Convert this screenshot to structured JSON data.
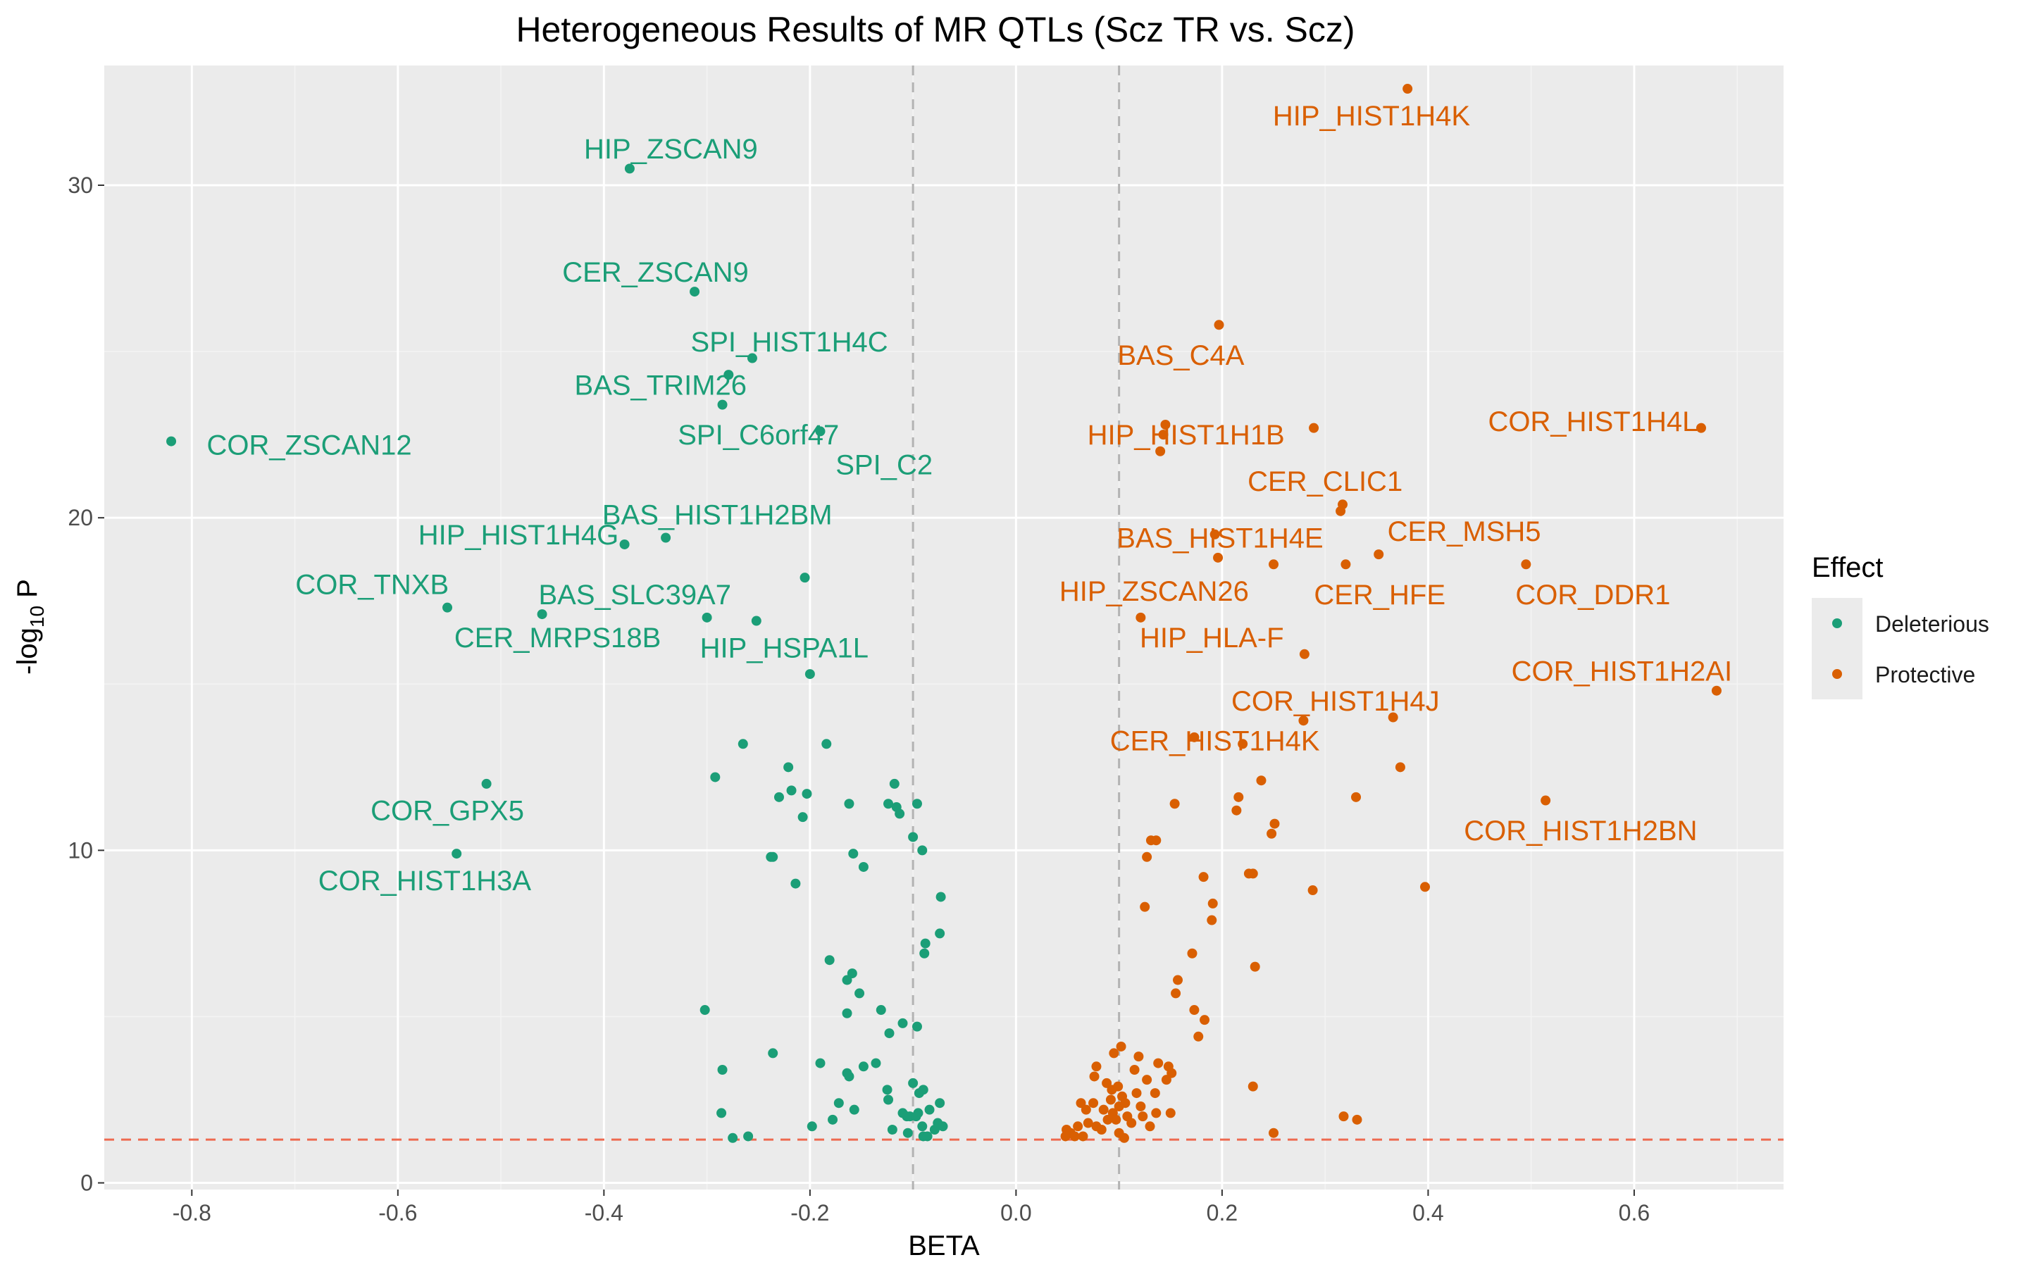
{
  "colors": {
    "deleterious": "#1b9e77",
    "protective": "#d95f02",
    "panel_bg": "#ebebeb",
    "grid_major": "#ffffff",
    "grid_minor": "#f4f4f4",
    "vline": "#b3b3b3",
    "hline": "#ee6a50",
    "text": "#1a1a1a",
    "tick_text": "#4d4d4d"
  },
  "chart_data": {
    "type": "scatter",
    "title": "Heterogeneous Results of MR QTLs (Scz TR vs. Scz)",
    "xlabel": "BETA",
    "ylabel_prefix": "-log",
    "ylabel_subscript": "10",
    "ylabel_suffix": " P",
    "xlim": [
      -0.885,
      0.745
    ],
    "ylim": [
      -0.2,
      33.6
    ],
    "x_ticks": [
      -0.8,
      -0.6,
      -0.4,
      -0.2,
      0.0,
      0.2,
      0.4,
      0.6
    ],
    "x_tick_labels": [
      "-0.8",
      "-0.6",
      "-0.4",
      "-0.2",
      "0.0",
      "0.2",
      "0.4",
      "0.6"
    ],
    "y_ticks": [
      0,
      10,
      20,
      30
    ],
    "y_tick_labels": [
      "0",
      "10",
      "20",
      "30"
    ],
    "grid": true,
    "vlines": [
      -0.1,
      0.1
    ],
    "hline": 1.3,
    "legend": {
      "title": "Effect",
      "position": "right",
      "entries": [
        "Deleterious",
        "Protective"
      ]
    },
    "series": [
      {
        "name": "Deleterious",
        "points": [
          {
            "x": -0.82,
            "y": 22.3
          },
          {
            "x": -0.375,
            "y": 30.5
          },
          {
            "x": -0.312,
            "y": 26.8
          },
          {
            "x": -0.256,
            "y": 24.8
          },
          {
            "x": -0.279,
            "y": 24.3
          },
          {
            "x": -0.285,
            "y": 23.4
          },
          {
            "x": -0.19,
            "y": 22.6
          },
          {
            "x": -0.38,
            "y": 19.2
          },
          {
            "x": -0.34,
            "y": 19.4
          },
          {
            "x": -0.552,
            "y": 17.3
          },
          {
            "x": -0.46,
            "y": 17.1
          },
          {
            "x": -0.3,
            "y": 17.0
          },
          {
            "x": -0.252,
            "y": 16.9
          },
          {
            "x": -0.205,
            "y": 18.2
          },
          {
            "x": -0.2,
            "y": 15.3
          },
          {
            "x": -0.514,
            "y": 12.0
          },
          {
            "x": -0.543,
            "y": 9.9
          },
          {
            "x": -0.265,
            "y": 13.2
          },
          {
            "x": -0.184,
            "y": 13.2
          },
          {
            "x": -0.221,
            "y": 12.5
          },
          {
            "x": -0.292,
            "y": 12.2
          },
          {
            "x": -0.218,
            "y": 11.8
          },
          {
            "x": -0.23,
            "y": 11.6
          },
          {
            "x": -0.203,
            "y": 11.7
          },
          {
            "x": -0.207,
            "y": 11.0
          },
          {
            "x": -0.162,
            "y": 11.4
          },
          {
            "x": -0.124,
            "y": 11.4
          },
          {
            "x": -0.118,
            "y": 12.0
          },
          {
            "x": -0.116,
            "y": 11.3
          },
          {
            "x": -0.113,
            "y": 11.1
          },
          {
            "x": -0.096,
            "y": 11.4
          },
          {
            "x": -0.1,
            "y": 10.4
          },
          {
            "x": -0.091,
            "y": 10.0
          },
          {
            "x": -0.238,
            "y": 9.8
          },
          {
            "x": -0.236,
            "y": 9.8
          },
          {
            "x": -0.158,
            "y": 9.9
          },
          {
            "x": -0.148,
            "y": 9.5
          },
          {
            "x": -0.214,
            "y": 9.0
          },
          {
            "x": -0.073,
            "y": 8.6
          },
          {
            "x": -0.088,
            "y": 7.2
          },
          {
            "x": -0.089,
            "y": 6.9
          },
          {
            "x": -0.074,
            "y": 7.5
          },
          {
            "x": -0.181,
            "y": 6.7
          },
          {
            "x": -0.159,
            "y": 6.3
          },
          {
            "x": -0.164,
            "y": 6.1
          },
          {
            "x": -0.152,
            "y": 5.7
          },
          {
            "x": -0.131,
            "y": 5.2
          },
          {
            "x": -0.164,
            "y": 5.1
          },
          {
            "x": -0.302,
            "y": 5.2
          },
          {
            "x": -0.11,
            "y": 4.8
          },
          {
            "x": -0.096,
            "y": 4.7
          },
          {
            "x": -0.123,
            "y": 4.5
          },
          {
            "x": -0.236,
            "y": 3.9
          },
          {
            "x": -0.19,
            "y": 3.6
          },
          {
            "x": -0.148,
            "y": 3.5
          },
          {
            "x": -0.136,
            "y": 3.6
          },
          {
            "x": -0.164,
            "y": 3.3
          },
          {
            "x": -0.162,
            "y": 3.2
          },
          {
            "x": -0.285,
            "y": 3.4
          },
          {
            "x": -0.1,
            "y": 3.0
          },
          {
            "x": -0.125,
            "y": 2.8
          },
          {
            "x": -0.094,
            "y": 2.7
          },
          {
            "x": -0.09,
            "y": 2.8
          },
          {
            "x": -0.124,
            "y": 2.5
          },
          {
            "x": -0.074,
            "y": 2.4
          },
          {
            "x": -0.084,
            "y": 2.2
          },
          {
            "x": -0.157,
            "y": 2.2
          },
          {
            "x": -0.172,
            "y": 2.4
          },
          {
            "x": -0.11,
            "y": 2.1
          },
          {
            "x": -0.106,
            "y": 2.0
          },
          {
            "x": -0.103,
            "y": 2.0
          },
          {
            "x": -0.095,
            "y": 2.1
          },
          {
            "x": -0.091,
            "y": 1.7
          },
          {
            "x": -0.097,
            "y": 2.0
          },
          {
            "x": -0.076,
            "y": 1.8
          },
          {
            "x": -0.071,
            "y": 1.7
          },
          {
            "x": -0.178,
            "y": 1.9
          },
          {
            "x": -0.198,
            "y": 1.7
          },
          {
            "x": -0.286,
            "y": 2.1
          },
          {
            "x": -0.12,
            "y": 1.6
          },
          {
            "x": -0.105,
            "y": 1.5
          },
          {
            "x": -0.09,
            "y": 1.4
          },
          {
            "x": -0.086,
            "y": 1.4
          },
          {
            "x": -0.079,
            "y": 1.6
          },
          {
            "x": -0.26,
            "y": 1.4
          },
          {
            "x": -0.275,
            "y": 1.35
          }
        ]
      },
      {
        "name": "Protective",
        "points": [
          {
            "x": 0.38,
            "y": 32.9
          },
          {
            "x": 0.197,
            "y": 25.8
          },
          {
            "x": 0.665,
            "y": 22.7
          },
          {
            "x": 0.289,
            "y": 22.7
          },
          {
            "x": 0.145,
            "y": 22.8
          },
          {
            "x": 0.143,
            "y": 22.5
          },
          {
            "x": 0.14,
            "y": 22.0
          },
          {
            "x": 0.317,
            "y": 20.4
          },
          {
            "x": 0.315,
            "y": 20.2
          },
          {
            "x": 0.193,
            "y": 19.5
          },
          {
            "x": 0.196,
            "y": 18.8
          },
          {
            "x": 0.25,
            "y": 18.6
          },
          {
            "x": 0.32,
            "y": 18.6
          },
          {
            "x": 0.352,
            "y": 18.9
          },
          {
            "x": 0.495,
            "y": 18.6
          },
          {
            "x": 0.121,
            "y": 17.0
          },
          {
            "x": 0.28,
            "y": 15.9
          },
          {
            "x": 0.68,
            "y": 14.8
          },
          {
            "x": 0.366,
            "y": 14.0
          },
          {
            "x": 0.279,
            "y": 13.9
          },
          {
            "x": 0.173,
            "y": 13.4
          },
          {
            "x": 0.22,
            "y": 13.2
          },
          {
            "x": 0.238,
            "y": 12.1
          },
          {
            "x": 0.373,
            "y": 12.5
          },
          {
            "x": 0.216,
            "y": 11.6
          },
          {
            "x": 0.33,
            "y": 11.6
          },
          {
            "x": 0.514,
            "y": 11.5
          },
          {
            "x": 0.154,
            "y": 11.4
          },
          {
            "x": 0.214,
            "y": 11.2
          },
          {
            "x": 0.251,
            "y": 10.8
          },
          {
            "x": 0.248,
            "y": 10.5
          },
          {
            "x": 0.136,
            "y": 10.3
          },
          {
            "x": 0.131,
            "y": 10.3
          },
          {
            "x": 0.127,
            "y": 9.8
          },
          {
            "x": 0.226,
            "y": 9.3
          },
          {
            "x": 0.23,
            "y": 9.3
          },
          {
            "x": 0.182,
            "y": 9.2
          },
          {
            "x": 0.397,
            "y": 8.9
          },
          {
            "x": 0.288,
            "y": 8.8
          },
          {
            "x": 0.191,
            "y": 8.4
          },
          {
            "x": 0.125,
            "y": 8.3
          },
          {
            "x": 0.19,
            "y": 7.9
          },
          {
            "x": 0.171,
            "y": 6.9
          },
          {
            "x": 0.232,
            "y": 6.5
          },
          {
            "x": 0.157,
            "y": 6.1
          },
          {
            "x": 0.155,
            "y": 5.7
          },
          {
            "x": 0.173,
            "y": 5.2
          },
          {
            "x": 0.183,
            "y": 4.9
          },
          {
            "x": 0.177,
            "y": 4.4
          },
          {
            "x": 0.102,
            "y": 4.1
          },
          {
            "x": 0.095,
            "y": 3.9
          },
          {
            "x": 0.119,
            "y": 3.8
          },
          {
            "x": 0.078,
            "y": 3.5
          },
          {
            "x": 0.115,
            "y": 3.4
          },
          {
            "x": 0.138,
            "y": 3.6
          },
          {
            "x": 0.148,
            "y": 3.5
          },
          {
            "x": 0.151,
            "y": 3.3
          },
          {
            "x": 0.146,
            "y": 3.1
          },
          {
            "x": 0.127,
            "y": 3.1
          },
          {
            "x": 0.076,
            "y": 3.2
          },
          {
            "x": 0.088,
            "y": 3.0
          },
          {
            "x": 0.093,
            "y": 2.8
          },
          {
            "x": 0.099,
            "y": 2.9
          },
          {
            "x": 0.103,
            "y": 2.6
          },
          {
            "x": 0.117,
            "y": 2.7
          },
          {
            "x": 0.135,
            "y": 2.7
          },
          {
            "x": 0.23,
            "y": 2.9
          },
          {
            "x": 0.063,
            "y": 2.4
          },
          {
            "x": 0.075,
            "y": 2.4
          },
          {
            "x": 0.092,
            "y": 2.5
          },
          {
            "x": 0.1,
            "y": 2.3
          },
          {
            "x": 0.106,
            "y": 2.4
          },
          {
            "x": 0.121,
            "y": 2.3
          },
          {
            "x": 0.068,
            "y": 2.2
          },
          {
            "x": 0.085,
            "y": 2.2
          },
          {
            "x": 0.094,
            "y": 2.1
          },
          {
            "x": 0.108,
            "y": 2.0
          },
          {
            "x": 0.123,
            "y": 2.0
          },
          {
            "x": 0.136,
            "y": 2.1
          },
          {
            "x": 0.15,
            "y": 2.1
          },
          {
            "x": 0.097,
            "y": 1.9
          },
          {
            "x": 0.07,
            "y": 1.8
          },
          {
            "x": 0.078,
            "y": 1.7
          },
          {
            "x": 0.083,
            "y": 1.6
          },
          {
            "x": 0.089,
            "y": 1.9
          },
          {
            "x": 0.112,
            "y": 1.8
          },
          {
            "x": 0.13,
            "y": 1.7
          },
          {
            "x": 0.06,
            "y": 1.7
          },
          {
            "x": 0.053,
            "y": 1.5
          },
          {
            "x": 0.049,
            "y": 1.6
          },
          {
            "x": 0.048,
            "y": 1.4
          },
          {
            "x": 0.057,
            "y": 1.4
          },
          {
            "x": 0.065,
            "y": 1.4
          },
          {
            "x": 0.1,
            "y": 1.5
          },
          {
            "x": 0.105,
            "y": 1.35
          },
          {
            "x": 0.25,
            "y": 1.5
          },
          {
            "x": 0.318,
            "y": 2.0
          },
          {
            "x": 0.331,
            "y": 1.9
          }
        ]
      }
    ],
    "annotations": [
      {
        "text": "HIP_HIST1H4K",
        "x": 0.345,
        "y": 32.1,
        "group": "Protective"
      },
      {
        "text": "HIP_ZSCAN9",
        "x": -0.335,
        "y": 31.1,
        "group": "Deleterious"
      },
      {
        "text": "CER_ZSCAN9",
        "x": -0.35,
        "y": 27.4,
        "group": "Deleterious"
      },
      {
        "text": "SPI_HIST1H4C",
        "x": -0.22,
        "y": 25.3,
        "group": "Deleterious"
      },
      {
        "text": "BAS_C4A",
        "x": 0.16,
        "y": 24.9,
        "group": "Protective"
      },
      {
        "text": "BAS_TRIM26",
        "x": -0.345,
        "y": 24.0,
        "group": "Deleterious"
      },
      {
        "text": "SPI_C6orf47",
        "x": -0.25,
        "y": 22.5,
        "group": "Deleterious"
      },
      {
        "text": "SPI_C2",
        "x": -0.128,
        "y": 21.6,
        "group": "Deleterious"
      },
      {
        "text": "COR_ZSCAN12",
        "x": -0.686,
        "y": 22.2,
        "group": "Deleterious"
      },
      {
        "text": "HIP_HIST1H1B",
        "x": 0.165,
        "y": 22.5,
        "group": "Protective"
      },
      {
        "text": "COR_HIST1H4L",
        "x": 0.56,
        "y": 22.9,
        "group": "Protective"
      },
      {
        "text": "CER_CLIC1",
        "x": 0.3,
        "y": 21.1,
        "group": "Protective"
      },
      {
        "text": "BAS_HIST1H2BM",
        "x": -0.29,
        "y": 20.1,
        "group": "Deleterious"
      },
      {
        "text": "HIP_HIST1H4G",
        "x": -0.483,
        "y": 19.5,
        "group": "Deleterious"
      },
      {
        "text": "BAS_HIST1H4E",
        "x": 0.198,
        "y": 19.4,
        "group": "Protective"
      },
      {
        "text": "CER_MSH5",
        "x": 0.435,
        "y": 19.6,
        "group": "Protective"
      },
      {
        "text": "COR_TNXB",
        "x": -0.625,
        "y": 18.0,
        "group": "Deleterious"
      },
      {
        "text": "HIP_ZSCAN26",
        "x": 0.134,
        "y": 17.8,
        "group": "Protective"
      },
      {
        "text": "CER_HFE",
        "x": 0.353,
        "y": 17.7,
        "group": "Protective"
      },
      {
        "text": "COR_DDR1",
        "x": 0.56,
        "y": 17.7,
        "group": "Protective"
      },
      {
        "text": "BAS_SLC39A7",
        "x": -0.37,
        "y": 17.7,
        "group": "Deleterious"
      },
      {
        "text": "CER_MRPS18B",
        "x": -0.445,
        "y": 16.4,
        "group": "Deleterious"
      },
      {
        "text": "HIP_HSPA1L",
        "x": -0.225,
        "y": 16.1,
        "group": "Deleterious"
      },
      {
        "text": "HIP_HLA-F",
        "x": 0.19,
        "y": 16.4,
        "group": "Protective"
      },
      {
        "text": "COR_HIST1H2AI",
        "x": 0.588,
        "y": 15.4,
        "group": "Protective"
      },
      {
        "text": "COR_HIST1H4J",
        "x": 0.31,
        "y": 14.5,
        "group": "Protective"
      },
      {
        "text": "CER_HIST1H4K",
        "x": 0.193,
        "y": 13.3,
        "group": "Protective"
      },
      {
        "text": "COR_GPX5",
        "x": -0.552,
        "y": 11.2,
        "group": "Deleterious"
      },
      {
        "text": "COR_HIST1H2BN",
        "x": 0.548,
        "y": 10.6,
        "group": "Protective"
      },
      {
        "text": "COR_HIST1H3A",
        "x": -0.574,
        "y": 9.1,
        "group": "Deleterious"
      }
    ]
  }
}
